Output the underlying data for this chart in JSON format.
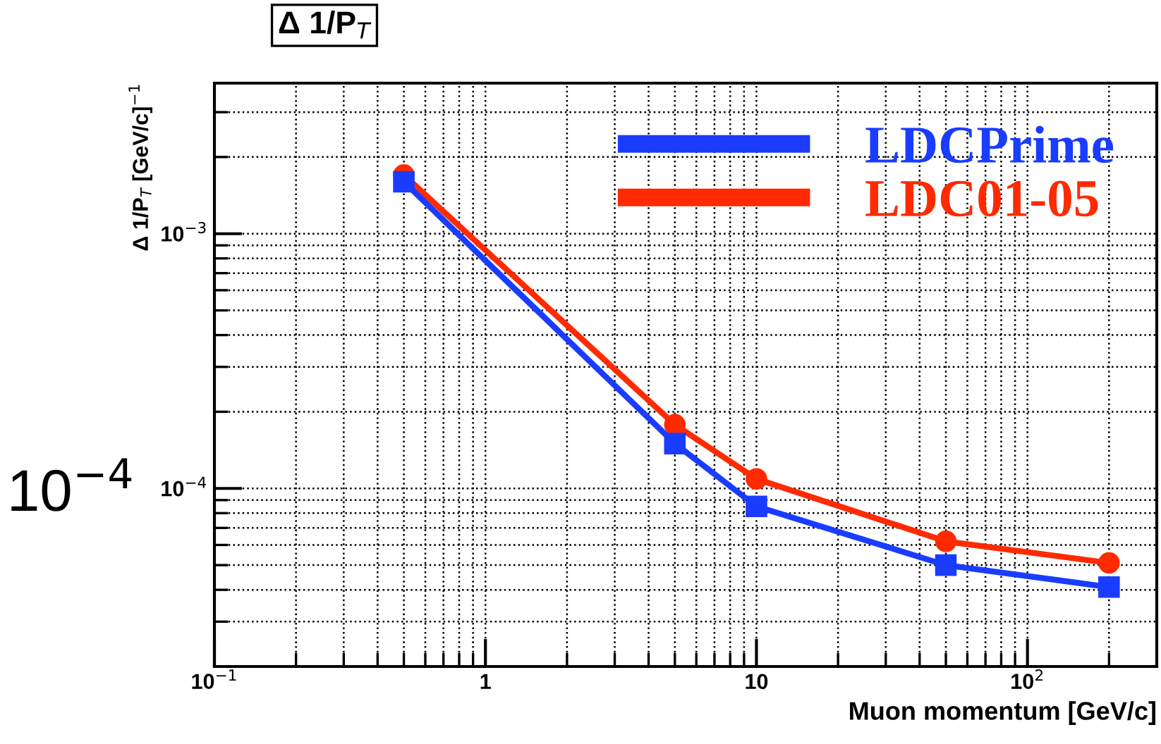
{
  "chart_data": {
    "type": "line",
    "title": "Δ 1/P$_{T}$",
    "xlabel": "Muon momentum [GeV/c]",
    "ylabel": "Δ 1/P$_{T}$ [GeV/c]$^{−1}$",
    "annotations": [
      "10$^{−4}$"
    ],
    "x": [
      0.5,
      5,
      10,
      50,
      200
    ],
    "series": [
      {
        "name": "LDCPrime",
        "color": "#1a3cff",
        "marker": "square",
        "values": [
          0.0016,
          0.00015,
          8.5e-05,
          5e-05,
          4.1e-05
        ]
      },
      {
        "name": "LDC01-05",
        "color": "#ff2a00",
        "marker": "circle",
        "values": [
          0.0017,
          0.000178,
          0.000109,
          6.2e-05,
          5.1e-05
        ]
      }
    ],
    "log": "xy",
    "xlim": [
      0.1,
      300
    ],
    "ylim": [
      2e-05,
      0.0039
    ],
    "xticks": [
      {
        "value": 0.1,
        "label": "10$^{−1}$"
      },
      1,
      10,
      {
        "value": 100,
        "label": "10$^{2}$"
      }
    ],
    "yticks": [
      {
        "value": 0.0001,
        "label": "10$^{−4}$"
      },
      {
        "value": 0.001,
        "label": "10$^{−3}$"
      }
    ],
    "grid": true,
    "legend": "top right",
    "line_style": "solid"
  }
}
